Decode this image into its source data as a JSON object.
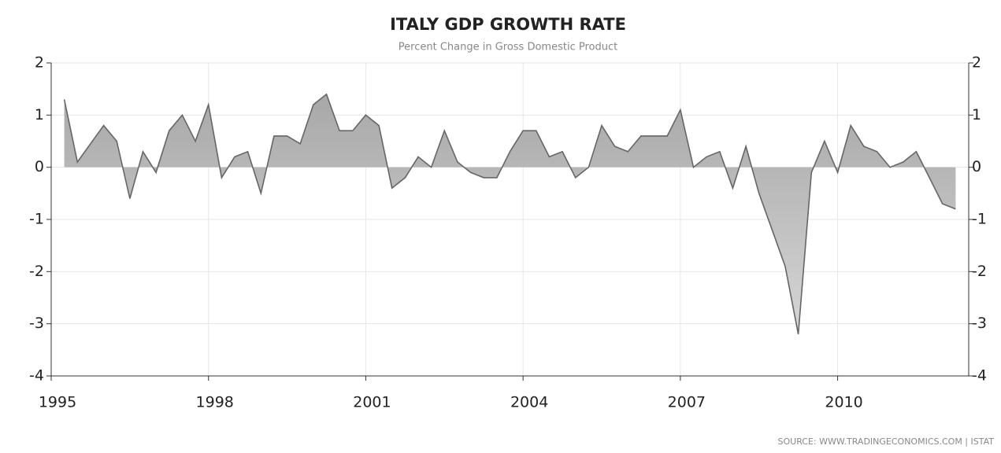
{
  "chart_data": {
    "type": "area",
    "title": "ITALY GDP GROWTH RATE",
    "subtitle": "Percent Change in Gross Domestic Product",
    "source": "SOURCE:  WWW.TRADINGECONOMICS.COM  |  ISTAT",
    "color": "#666666",
    "fill": "#bdbdbd",
    "grid": true,
    "xlim": [
      1995,
      2012.5
    ],
    "xticks": [
      1995,
      1998,
      2001,
      2004,
      2007,
      2010
    ],
    "ylim": [
      -4,
      2
    ],
    "yticks": [
      -4,
      -3,
      -2,
      -1,
      0,
      1,
      2
    ],
    "y2lim": [
      -4,
      2
    ],
    "y2ticks": [
      -4,
      -3,
      -2,
      -1,
      0,
      1,
      2
    ],
    "x": [
      1995.25,
      1995.5,
      1995.75,
      1996,
      1996.25,
      1996.5,
      1996.75,
      1997,
      1997.25,
      1997.5,
      1997.75,
      1998,
      1998.25,
      1998.5,
      1998.75,
      1999,
      1999.25,
      1999.5,
      1999.75,
      2000,
      2000.25,
      2000.5,
      2000.75,
      2001,
      2001.25,
      2001.5,
      2001.75,
      2002,
      2002.25,
      2002.5,
      2002.75,
      2003,
      2003.25,
      2003.5,
      2003.75,
      2004,
      2004.25,
      2004.5,
      2004.75,
      2005,
      2005.25,
      2005.5,
      2005.75,
      2006,
      2006.25,
      2006.5,
      2006.75,
      2007,
      2007.25,
      2007.5,
      2007.75,
      2008,
      2008.25,
      2008.5,
      2008.75,
      2009,
      2009.25,
      2009.5,
      2009.75,
      2010,
      2010.25,
      2010.5,
      2010.75,
      2011,
      2011.25,
      2011.5,
      2011.75,
      2012,
      2012.25
    ],
    "values": [
      1.3,
      0.1,
      0.45,
      0.8,
      0.5,
      -0.6,
      0.3,
      -0.1,
      0.7,
      1.0,
      0.5,
      1.2,
      -0.2,
      0.2,
      0.3,
      -0.5,
      0.6,
      0.6,
      0.45,
      1.2,
      1.4,
      0.7,
      0.7,
      1.0,
      0.8,
      -0.4,
      -0.2,
      0.2,
      0.0,
      0.7,
      0.1,
      -0.1,
      -0.2,
      -0.2,
      0.3,
      0.7,
      0.7,
      0.2,
      0.3,
      -0.2,
      0.0,
      0.8,
      0.4,
      0.3,
      0.6,
      0.6,
      0.6,
      1.1,
      0.0,
      0.2,
      0.3,
      -0.4,
      0.4,
      -0.5,
      -1.2,
      -1.9,
      -3.2,
      -0.1,
      0.5,
      -0.1,
      0.8,
      0.4,
      0.3,
      0.0,
      0.1,
      0.3,
      -0.2,
      -0.7,
      -0.8
    ]
  }
}
